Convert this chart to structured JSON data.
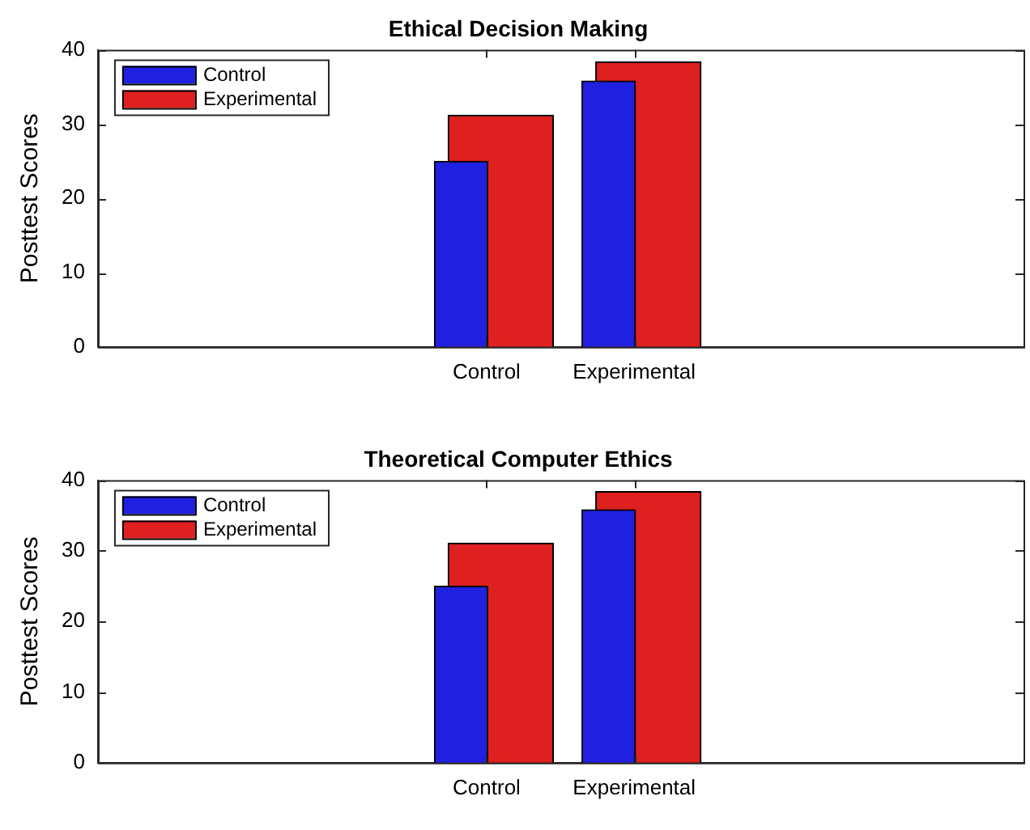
{
  "chart_data": [
    {
      "type": "bar",
      "title": "Ethical Decision Making",
      "ylabel": "Posttest Scores",
      "categories": [
        "Control",
        "Experimental"
      ],
      "series": [
        {
          "name": "Control",
          "color": "#2020e0",
          "values": [
            25.0,
            35.8
          ]
        },
        {
          "name": "Experimental",
          "color": "#de2020",
          "values": [
            31.2,
            38.4
          ]
        }
      ],
      "ylim": [
        0,
        40
      ],
      "yticks": [
        0,
        10,
        20,
        30,
        40
      ],
      "grid": false,
      "legend": "top left"
    },
    {
      "type": "bar",
      "title": "Theoretical Computer Ethics",
      "ylabel": "Posttest Scores",
      "categories": [
        "Control",
        "Experimental"
      ],
      "series": [
        {
          "name": "Control",
          "color": "#2020e0",
          "values": [
            25.0,
            35.8
          ]
        },
        {
          "name": "Experimental",
          "color": "#de2020",
          "values": [
            31.1,
            38.4
          ]
        }
      ],
      "ylim": [
        0,
        40
      ],
      "yticks": [
        0,
        10,
        20,
        30,
        40
      ],
      "grid": false,
      "legend": "top left"
    }
  ]
}
